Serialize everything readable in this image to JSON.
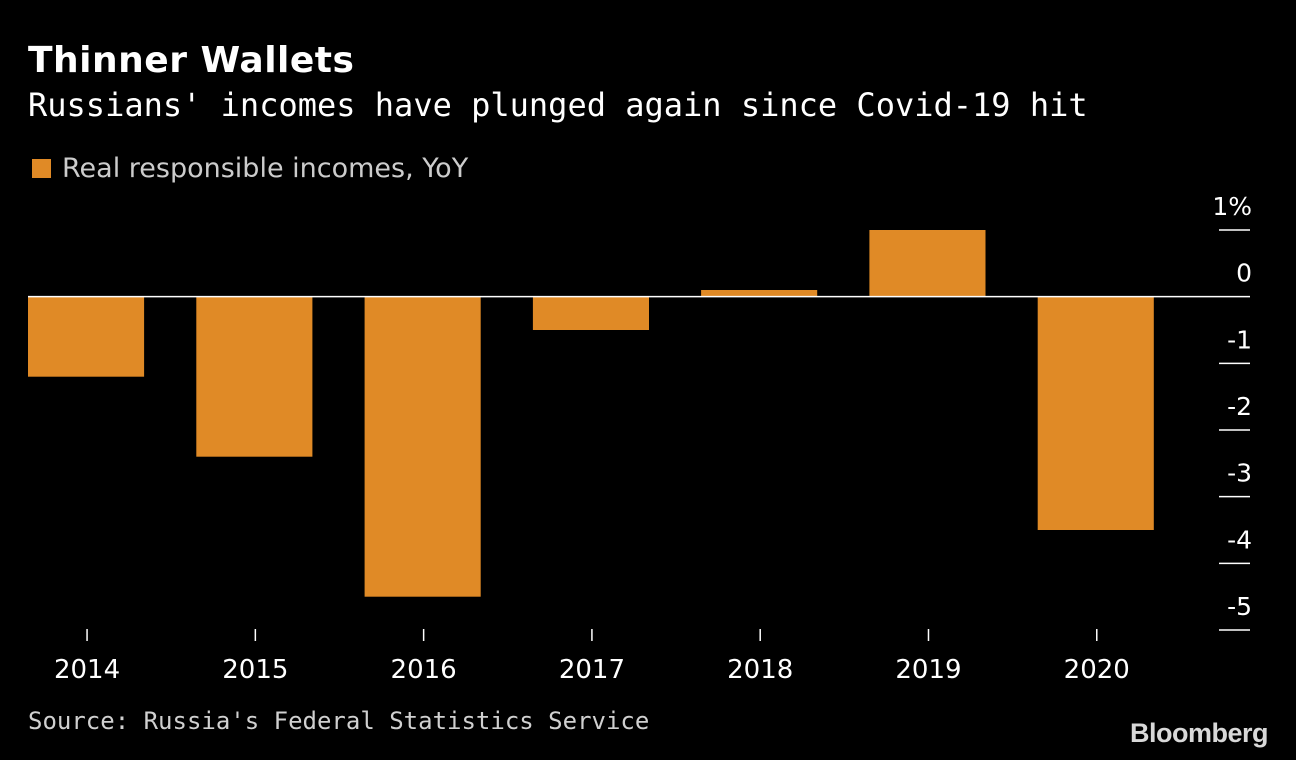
{
  "header": {
    "title": "Thinner Wallets",
    "subtitle": "Russians' incomes have plunged again since Covid-19 hit"
  },
  "legend": {
    "label": "Real responsible incomes, YoY",
    "color": "#E08A26"
  },
  "footer": {
    "source": "Source: Russia's Federal Statistics Service",
    "brand": "Bloomberg"
  },
  "colors": {
    "background": "#000000",
    "bar": "#E08A26",
    "axis": "#ffffff",
    "tick_label": "#ffffff"
  },
  "chart_data": {
    "type": "bar",
    "title": "Thinner Wallets",
    "subtitle": "Russians' incomes have plunged again since Covid-19 hit",
    "categories": [
      "2014",
      "2015",
      "2016",
      "2017",
      "2018",
      "2019",
      "2020"
    ],
    "series": [
      {
        "name": "Real responsible incomes, YoY",
        "values": [
          -1.2,
          -2.4,
          -4.5,
          -0.5,
          0.1,
          1.0,
          -3.5
        ]
      }
    ],
    "ylim": [
      -5,
      1
    ],
    "yticks": [
      1,
      0,
      -1,
      -2,
      -3,
      -4,
      -5
    ],
    "ytick_labels": [
      "1%",
      "0",
      "-1",
      "-2",
      "-3",
      "-4",
      "-5"
    ],
    "y_axis_side": "right",
    "xlabel": "",
    "ylabel": "",
    "grid": false,
    "legend_position": "top-left"
  }
}
